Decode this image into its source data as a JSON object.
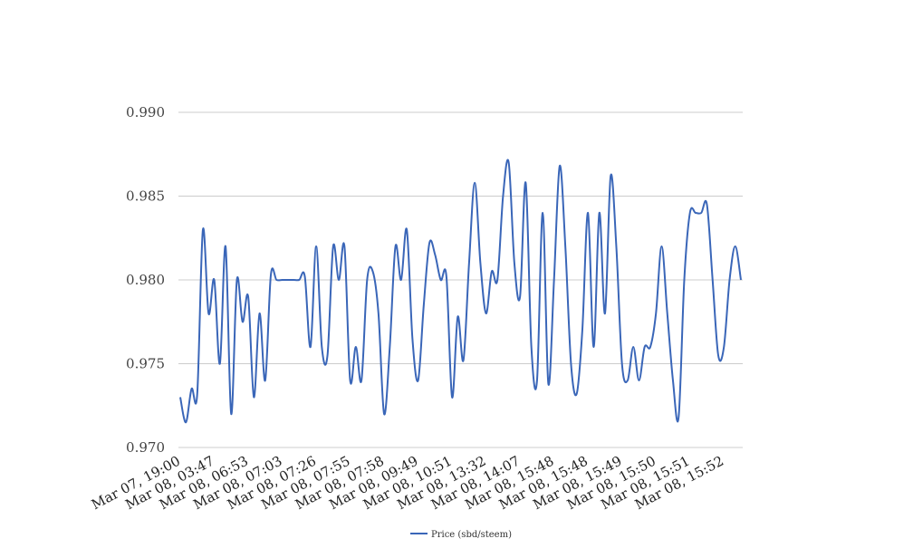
{
  "chart_data": {
    "type": "line",
    "title": "",
    "xlabel": "",
    "ylabel": "",
    "ylim": [
      0.97,
      0.99
    ],
    "yticks": [
      "0.970",
      "0.975",
      "0.980",
      "0.985",
      "0.990"
    ],
    "grid": "horizontal",
    "legend_position": "bottom",
    "x_tick_labels": [
      "Mar 07, 19:00",
      "Mar 08, 03:47",
      "Mar 08, 06:53",
      "Mar 08, 07:03",
      "Mar 08, 07:26",
      "Mar 08, 07:55",
      "Mar 08, 07:58",
      "Mar 08, 09:49",
      "Mar 08, 10:51",
      "Mar 08, 13:32",
      "Mar 08, 14:07",
      "Mar 08, 15:48",
      "Mar 08, 15:48",
      "Mar 08, 15:49",
      "Mar 08, 15:50",
      "Mar 08, 15:51",
      "Mar 08, 15:52"
    ],
    "series": [
      {
        "name": "Price (sbd/steem)",
        "color": "#3a66b8",
        "values": [
          0.973,
          0.9715,
          0.9735,
          0.9732,
          0.983,
          0.978,
          0.98,
          0.975,
          0.982,
          0.972,
          0.98,
          0.9775,
          0.979,
          0.973,
          0.978,
          0.974,
          0.9803,
          0.98,
          0.98,
          0.98,
          0.98,
          0.98,
          0.9802,
          0.976,
          0.982,
          0.976,
          0.9755,
          0.982,
          0.98,
          0.982,
          0.974,
          0.976,
          0.974,
          0.98,
          0.9805,
          0.978,
          0.972,
          0.976,
          0.982,
          0.98,
          0.983,
          0.9765,
          0.974,
          0.9785,
          0.9822,
          0.9815,
          0.98,
          0.9802,
          0.973,
          0.9778,
          0.9752,
          0.981,
          0.9858,
          0.981,
          0.978,
          0.9805,
          0.98,
          0.985,
          0.987,
          0.981,
          0.979,
          0.9858,
          0.976,
          0.974,
          0.984,
          0.9738,
          0.98,
          0.9868,
          0.982,
          0.975,
          0.9732,
          0.977,
          0.984,
          0.976,
          0.984,
          0.978,
          0.9862,
          0.982,
          0.975,
          0.974,
          0.976,
          0.974,
          0.976,
          0.976,
          0.978,
          0.982,
          0.978,
          0.974,
          0.9718,
          0.98,
          0.984,
          0.984,
          0.984,
          0.9845,
          0.98,
          0.9755,
          0.976,
          0.98,
          0.982,
          0.98
        ]
      }
    ]
  }
}
